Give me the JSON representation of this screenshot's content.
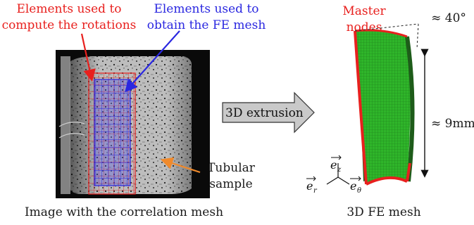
{
  "labels": {
    "elements_rotations_line1": "Elements used to",
    "elements_rotations_line2": "compute the rotations",
    "elements_mesh_line1": "Elements used to",
    "elements_mesh_line2": "obtain the FE mesh",
    "tubular_line1": "Tubular",
    "tubular_line2": "sample",
    "left_caption": "Image with the correlation mesh",
    "extrusion": "3D extrusion",
    "master_line1": "Master",
    "master_line2": "nodes",
    "angle": "≈ 40°",
    "height": "≈ 9mm",
    "right_caption": "3D FE mesh",
    "axis_z": "ez",
    "axis_r": "er",
    "axis_theta": "eθ"
  },
  "colors": {
    "red": "#e8201e",
    "blue": "#2a27e0",
    "orange": "#f08a2c",
    "green": "#2fb52a"
  }
}
